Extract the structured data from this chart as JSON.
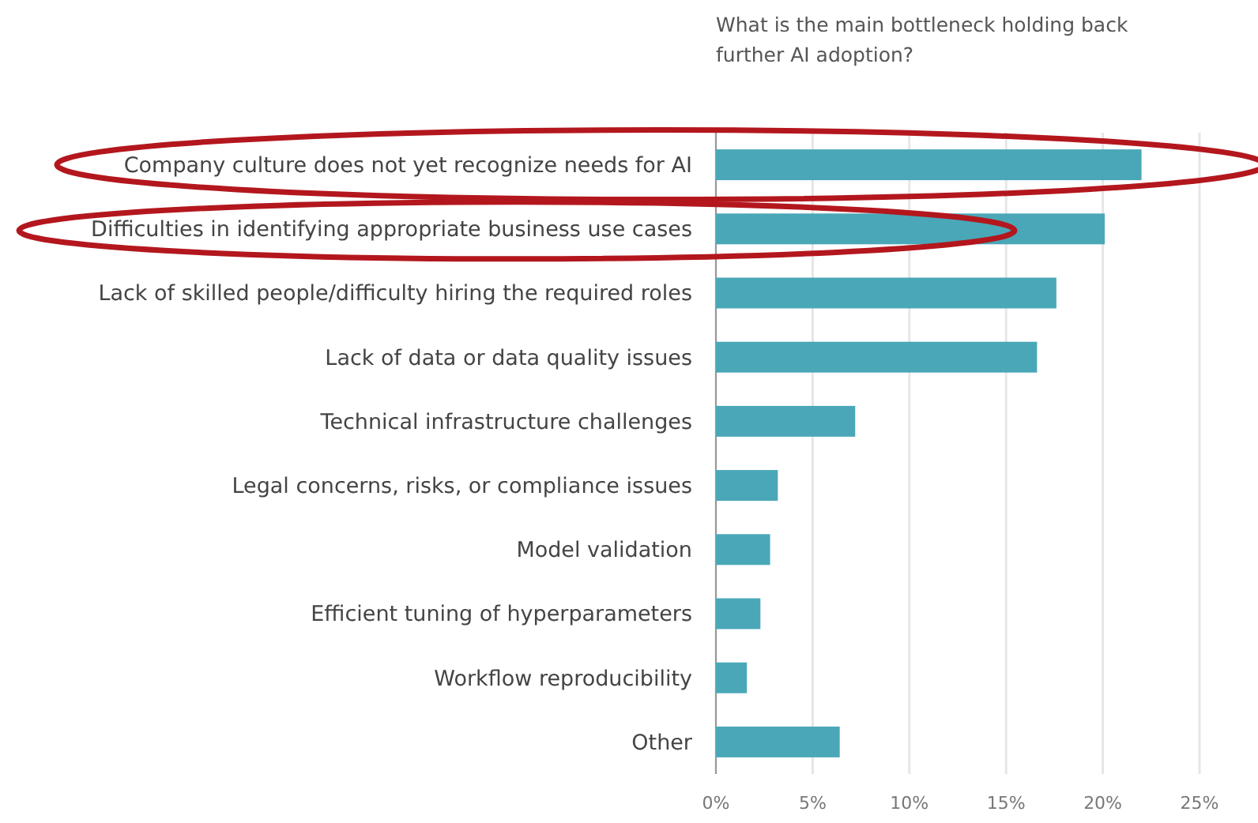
{
  "chart_data": {
    "type": "bar",
    "orientation": "horizontal",
    "title": "What is the main bottleneck holding back further AI adoption?",
    "categories": [
      "Company culture does not yet recognize needs for AI",
      "Difficulties in identifying appropriate business use cases",
      "Lack of skilled people/difficulty hiring the required roles",
      "Lack of data or data quality issues",
      "Technical infrastructure challenges",
      "Legal concerns, risks, or compliance issues",
      "Model validation",
      "Efficient tuning of hyperparameters",
      "Workflow reproducibility",
      "Other"
    ],
    "values": [
      22.0,
      20.1,
      17.6,
      16.6,
      7.2,
      3.2,
      2.8,
      2.3,
      1.6,
      6.4
    ],
    "color": "#4aa7b8",
    "xlim": [
      0,
      25
    ],
    "xticks": [
      {
        "value": 0,
        "label": "0%"
      },
      {
        "value": 5,
        "label": "5%"
      },
      {
        "value": 10,
        "label": "10%"
      },
      {
        "value": 15,
        "label": "15%"
      },
      {
        "value": 20,
        "label": "20%"
      },
      {
        "value": 25,
        "label": "25%"
      }
    ],
    "grid": "x"
  }
}
